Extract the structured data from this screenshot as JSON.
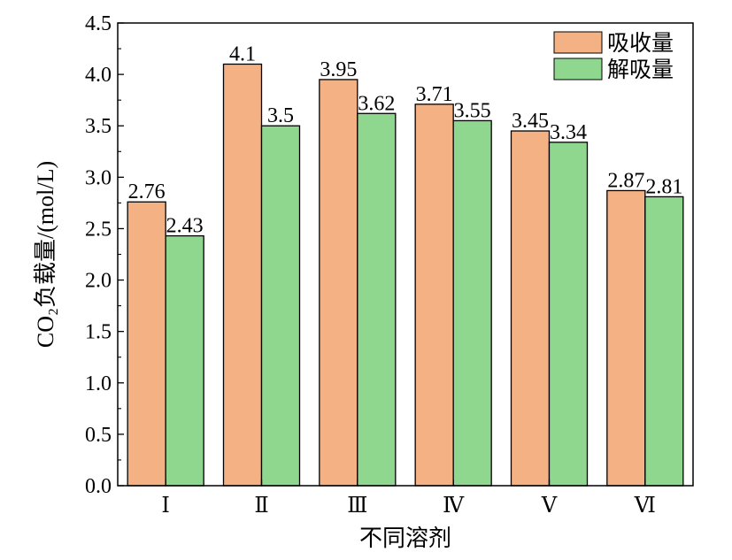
{
  "chart_data": {
    "type": "bar",
    "categories": [
      "Ⅰ",
      "Ⅱ",
      "Ⅲ",
      "Ⅳ",
      "Ⅴ",
      "Ⅵ"
    ],
    "series": [
      {
        "name": "吸收量",
        "values": [
          2.76,
          4.1,
          3.95,
          3.71,
          3.45,
          2.87
        ],
        "labels": [
          "2.76",
          "4.1",
          "3.95",
          "3.71",
          "3.45",
          "2.87"
        ],
        "color": "#F4B183"
      },
      {
        "name": "解吸量",
        "values": [
          2.43,
          3.5,
          3.62,
          3.55,
          3.34,
          2.81
        ],
        "labels": [
          "2.43",
          "3.5",
          "3.62",
          "3.55",
          "3.34",
          "2.81"
        ],
        "color": "#8FD68F"
      }
    ],
    "xlabel": "不同溶剂",
    "ylabel": "CO₂负载量/(mol/L)",
    "ylim": [
      0,
      4.5
    ],
    "yticks": [
      "0.0",
      "0.5",
      "1.0",
      "1.5",
      "2.0",
      "2.5",
      "3.0",
      "3.5",
      "4.0",
      "4.5"
    ],
    "legend_position": "top-right",
    "grid": false
  }
}
